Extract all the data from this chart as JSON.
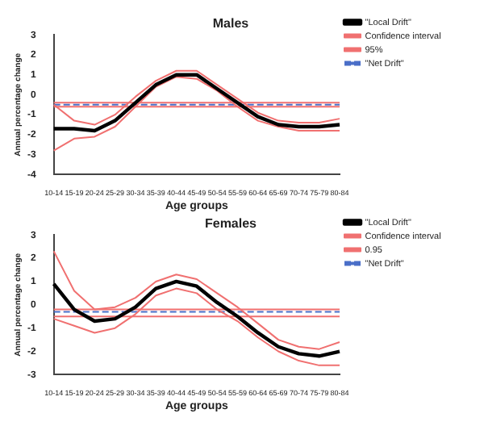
{
  "chart_data": [
    {
      "type": "line",
      "title": "Males",
      "xlabel": "Age groups",
      "ylabel": "Annual percentage change",
      "categories": [
        "10-14",
        "15-19",
        "20-24",
        "25-29",
        "30-34",
        "35-39",
        "40-44",
        "45-49",
        "50-54",
        "55-59",
        "60-64",
        "65-69",
        "70-74",
        "75-79",
        "80-84"
      ],
      "ylim": [
        -4,
        3
      ],
      "yticks": [
        -4,
        -3,
        -2,
        -1,
        0,
        1,
        2,
        3
      ],
      "grid": false,
      "legend": "top right",
      "marker": "none",
      "series": [
        {
          "name": "\"Local Drift\"",
          "color": "#000000",
          "values": [
            -1.7,
            -1.7,
            -1.8,
            -1.3,
            -0.4,
            0.5,
            1.0,
            1.0,
            0.3,
            -0.4,
            -1.1,
            -1.5,
            -1.6,
            -1.6,
            -1.5
          ]
        },
        {
          "name": "Confidence interval",
          "color": "#f07070",
          "values": [
            -0.5,
            -1.3,
            -1.5,
            -1.0,
            -0.1,
            0.7,
            1.2,
            1.2,
            0.5,
            -0.2,
            -0.9,
            -1.3,
            -1.4,
            -1.4,
            -1.2
          ]
        },
        {
          "name": "95%",
          "color": "#f07070",
          "values": [
            -2.8,
            -2.2,
            -2.1,
            -1.6,
            -0.6,
            0.4,
            0.9,
            0.8,
            0.2,
            -0.6,
            -1.3,
            -1.6,
            -1.8,
            -1.8,
            -1.8
          ]
        },
        {
          "name": "\"Net Drift\"",
          "color": "#4a6fc8",
          "line_style": "dashed",
          "values": [
            -0.5,
            -0.5,
            -0.5,
            -0.5,
            -0.5,
            -0.5,
            -0.5,
            -0.5,
            -0.5,
            -0.5,
            -0.5,
            -0.5,
            -0.5,
            -0.5,
            -0.5
          ]
        },
        {
          "color": "#f07070",
          "values": [
            -0.4,
            -0.4,
            -0.4,
            -0.4,
            -0.4,
            -0.4,
            -0.4,
            -0.4,
            -0.4,
            -0.4,
            -0.4,
            -0.4,
            -0.4,
            -0.4,
            -0.4
          ]
        },
        {
          "color": "#f07070",
          "values": [
            -0.6,
            -0.6,
            -0.6,
            -0.6,
            -0.6,
            -0.6,
            -0.6,
            -0.6,
            -0.6,
            -0.6,
            -0.6,
            -0.6,
            -0.6,
            -0.6,
            -0.6
          ]
        }
      ]
    },
    {
      "type": "line",
      "title": "Females",
      "xlabel": "Age groups",
      "ylabel": "Annual percentage change",
      "categories": [
        "10-14",
        "15-19",
        "20-24",
        "25-29",
        "30-34",
        "35-39",
        "40-44",
        "45-49",
        "50-54",
        "55-59",
        "60-64",
        "65-69",
        "70-74",
        "75-79",
        "80-84"
      ],
      "ylim": [
        -3,
        3
      ],
      "yticks": [
        -3,
        -2,
        -1,
        0,
        1,
        2,
        3
      ],
      "grid": false,
      "legend": "top right",
      "marker": "none",
      "series": [
        {
          "name": "\"Local Drift\"",
          "color": "#000000",
          "values": [
            0.9,
            -0.2,
            -0.7,
            -0.6,
            -0.1,
            0.7,
            1.0,
            0.8,
            0.1,
            -0.5,
            -1.2,
            -1.8,
            -2.1,
            -2.2,
            -2.0
          ]
        },
        {
          "name": "Confidence interval",
          "color": "#f07070",
          "values": [
            2.3,
            0.6,
            -0.2,
            -0.1,
            0.3,
            1.0,
            1.3,
            1.1,
            0.5,
            -0.1,
            -0.8,
            -1.5,
            -1.8,
            -1.9,
            -1.6
          ]
        },
        {
          "name": "0.95",
          "color": "#f07070",
          "values": [
            -0.6,
            -0.9,
            -1.2,
            -1.0,
            -0.4,
            0.4,
            0.7,
            0.5,
            -0.2,
            -0.7,
            -1.4,
            -2.0,
            -2.4,
            -2.6,
            -2.6
          ]
        },
        {
          "name": "\"Net Drift\"",
          "color": "#4a6fc8",
          "line_style": "dashed",
          "values": [
            -0.3,
            -0.3,
            -0.3,
            -0.3,
            -0.3,
            -0.3,
            -0.3,
            -0.3,
            -0.3,
            -0.3,
            -0.3,
            -0.3,
            -0.3,
            -0.3,
            -0.3
          ]
        },
        {
          "color": "#f07070",
          "values": [
            -0.2,
            -0.2,
            -0.2,
            -0.2,
            -0.2,
            -0.2,
            -0.2,
            -0.2,
            -0.2,
            -0.2,
            -0.2,
            -0.2,
            -0.2,
            -0.2,
            -0.2
          ]
        },
        {
          "color": "#f07070",
          "values": [
            -0.5,
            -0.5,
            -0.5,
            -0.5,
            -0.5,
            -0.5,
            -0.5,
            -0.5,
            -0.5,
            -0.5,
            -0.5,
            -0.5,
            -0.5,
            -0.5,
            -0.5
          ]
        }
      ]
    }
  ]
}
